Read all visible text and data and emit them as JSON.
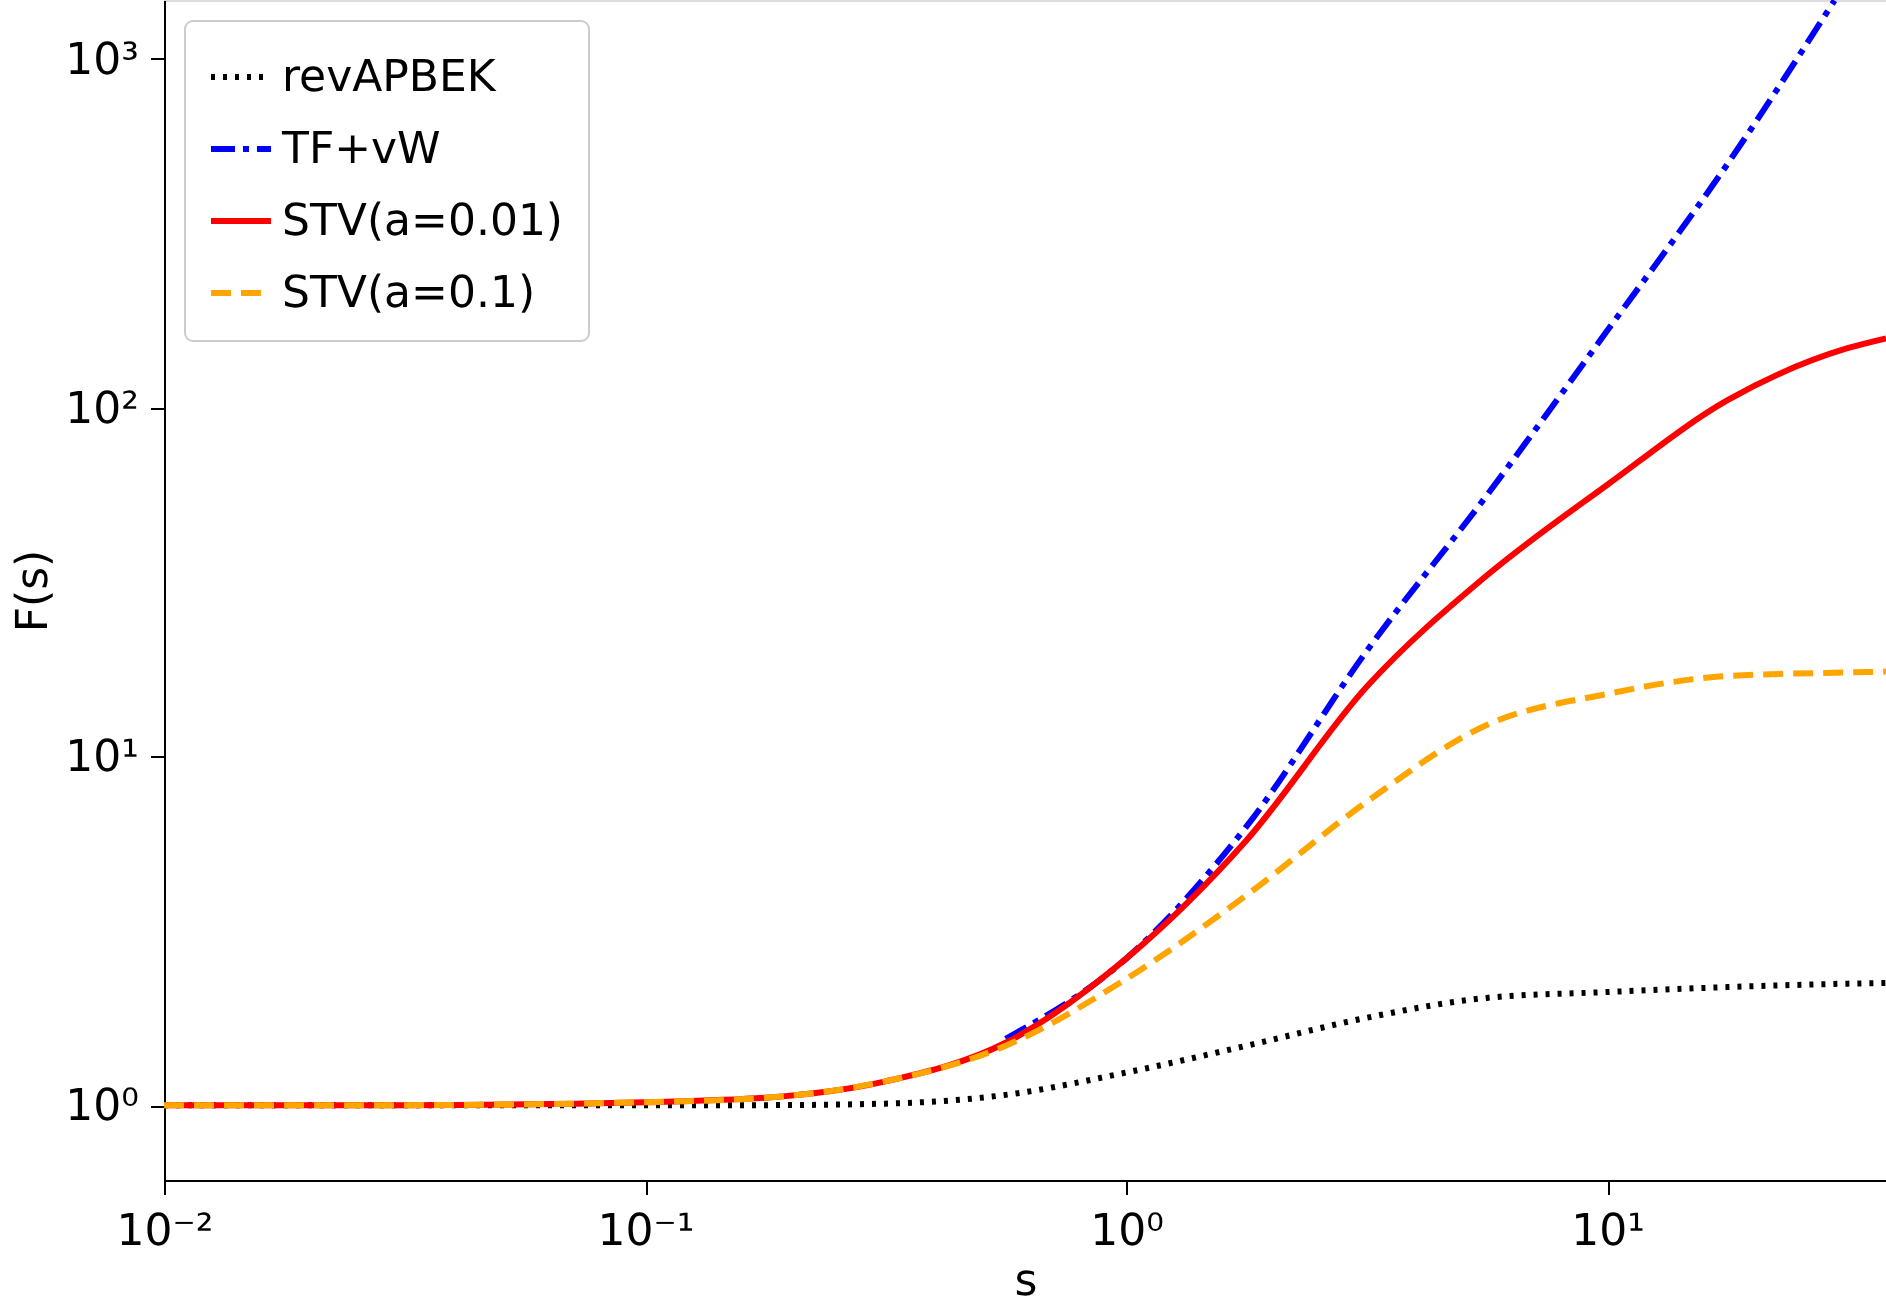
{
  "chart_data": {
    "type": "line",
    "xlabel": "s",
    "ylabel": "F(s)",
    "log": "xy",
    "grid": false,
    "legend": "top left",
    "marker": "none",
    "xlim": [
      0.01,
      38
    ],
    "ylim": [
      0.61,
      1475
    ],
    "xticks": [
      {
        "value": 0.01,
        "label": "10⁻²"
      },
      {
        "value": 0.1,
        "label": "10⁻¹"
      },
      {
        "value": 1,
        "label": "10⁰"
      },
      {
        "value": 10,
        "label": "10¹"
      }
    ],
    "yticks": [
      {
        "value": 1,
        "label": "10⁰"
      },
      {
        "value": 10,
        "label": "10¹"
      },
      {
        "value": 100,
        "label": "10²"
      },
      {
        "value": 1000,
        "label": "10³"
      }
    ],
    "series": [
      {
        "name": "revAPBEK",
        "color": "#000000",
        "line_style": "dotted",
        "x": [
          0.01,
          0.0316,
          0.1,
          0.178,
          0.316,
          0.562,
          1,
          1.78,
          3.16,
          5.62,
          10,
          17.8,
          31.6,
          38
        ],
        "values": [
          1,
          1,
          1,
          1.0,
          1.01,
          1.07,
          1.24,
          1.48,
          1.78,
          2.03,
          2.11,
          2.18,
          2.23,
          2.24
        ]
      },
      {
        "name": "TF+vW",
        "color": "#0000ff",
        "line_style": "dashdot",
        "x": [
          0.562,
          1,
          1.78,
          3.16,
          5.62,
          10,
          17.8,
          29.7
        ],
        "values": [
          1.55,
          2.63,
          6.3,
          20,
          56,
          166,
          500,
          1470
        ]
      },
      {
        "name": "STV(a=0.01)",
        "color": "#ff0000",
        "line_style": "solid",
        "x": [
          0.01,
          0.0316,
          0.1,
          0.178,
          0.316,
          0.562,
          1,
          1.78,
          3.16,
          5.62,
          10,
          17.8,
          31.6,
          38
        ],
        "values": [
          1.0,
          1.0,
          1.02,
          1.05,
          1.17,
          1.51,
          2.63,
          5.75,
          15.8,
          33,
          60,
          105,
          148,
          158
        ]
      },
      {
        "name": "STV(a=0.1)",
        "color": "#ffa500",
        "line_style": "dashed",
        "x": [
          0.01,
          0.0316,
          0.1,
          0.178,
          0.316,
          0.562,
          1,
          1.78,
          3.16,
          5.62,
          10,
          17.8,
          31.6,
          38
        ],
        "values": [
          1.0,
          1.0,
          1.02,
          1.05,
          1.17,
          1.48,
          2.3,
          4.0,
          7.4,
          12.3,
          15.1,
          17.0,
          17.4,
          17.5
        ]
      }
    ]
  }
}
